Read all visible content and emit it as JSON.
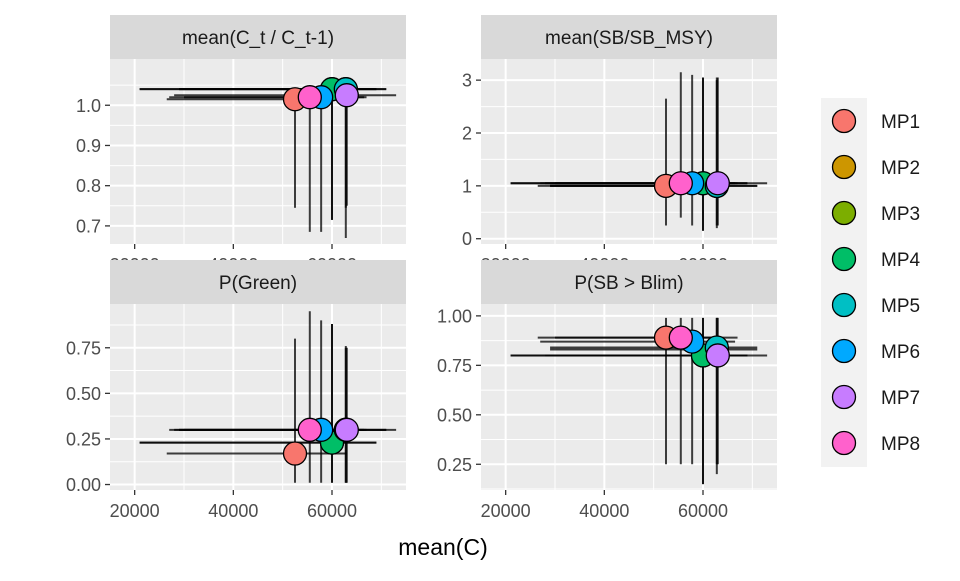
{
  "chart_data": {
    "type": "scatter",
    "xlabel": "mean(C)",
    "x_ticks": [
      20000,
      40000,
      60000
    ],
    "x_tick_labels": [
      "20000",
      "40000",
      "60000"
    ],
    "xlim": [
      15000,
      75000
    ],
    "legend": {
      "position": "right"
    },
    "series": [
      {
        "name": "MP1",
        "color": "#F8766D"
      },
      {
        "name": "MP2",
        "color": "#CD9600"
      },
      {
        "name": "MP3",
        "color": "#7CAE00"
      },
      {
        "name": "MP4",
        "color": "#00BE67"
      },
      {
        "name": "MP5",
        "color": "#00BFC4"
      },
      {
        "name": "MP6",
        "color": "#00A9FF"
      },
      {
        "name": "MP7",
        "color": "#C77CFF"
      },
      {
        "name": "MP8",
        "color": "#FF61CC"
      }
    ],
    "panels": [
      {
        "title": "mean(C_t / C_t-1)",
        "ylim": [
          0.655,
          1.115
        ],
        "y_ticks": [
          0.7,
          0.8,
          0.9,
          1.0
        ],
        "y_tick_labels": [
          "0.7",
          "0.8",
          "0.9",
          "1.0"
        ],
        "points": [
          {
            "mp": "MP1",
            "x": 52500,
            "y": 1.015,
            "x_lo": 26500,
            "x_hi": 63000,
            "y_lo": 0.745,
            "y_hi": 1.025
          },
          {
            "mp": "MP2",
            "x": 60000,
            "y": 1.04,
            "x_lo": 21000,
            "x_hi": 69000,
            "y_lo": 0.715,
            "y_hi": 1.05
          },
          {
            "mp": "MP3",
            "x": 62800,
            "y": 1.04,
            "x_lo": 29000,
            "x_hi": 71000,
            "y_lo": 0.745,
            "y_hi": 1.05
          },
          {
            "mp": "MP4",
            "x": 60000,
            "y": 1.04,
            "x_lo": 21000,
            "x_hi": 69000,
            "y_lo": 0.715,
            "y_hi": 1.05
          },
          {
            "mp": "MP5",
            "x": 62800,
            "y": 1.04,
            "x_lo": 29000,
            "x_hi": 71000,
            "y_lo": 0.67,
            "y_hi": 1.05
          },
          {
            "mp": "MP6",
            "x": 57800,
            "y": 1.02,
            "x_lo": 27000,
            "x_hi": 66500,
            "y_lo": 0.685,
            "y_hi": 1.03
          },
          {
            "mp": "MP7",
            "x": 63000,
            "y": 1.025,
            "x_lo": 28000,
            "x_hi": 73000,
            "y_lo": 0.75,
            "y_hi": 1.03
          },
          {
            "mp": "MP8",
            "x": 55500,
            "y": 1.02,
            "x_lo": 30000,
            "x_hi": 67000,
            "y_lo": 0.685,
            "y_hi": 1.03
          }
        ]
      },
      {
        "title": "mean(SB/SB_MSY)",
        "ylim": [
          -0.1,
          3.4
        ],
        "y_ticks": [
          0,
          1,
          2,
          3
        ],
        "y_tick_labels": [
          "0",
          "1",
          "2",
          "3"
        ],
        "points": [
          {
            "mp": "MP1",
            "x": 52500,
            "y": 1.0,
            "x_lo": 26500,
            "x_hi": 63000,
            "y_lo": 0.25,
            "y_hi": 2.65
          },
          {
            "mp": "MP2",
            "x": 60000,
            "y": 1.05,
            "x_lo": 21000,
            "x_hi": 69000,
            "y_lo": 0.15,
            "y_hi": 3.05
          },
          {
            "mp": "MP3",
            "x": 62800,
            "y": 1.0,
            "x_lo": 29000,
            "x_hi": 71000,
            "y_lo": 0.2,
            "y_hi": 3.05
          },
          {
            "mp": "MP4",
            "x": 60000,
            "y": 1.05,
            "x_lo": 21000,
            "x_hi": 69000,
            "y_lo": 0.15,
            "y_hi": 3.05
          },
          {
            "mp": "MP5",
            "x": 62800,
            "y": 1.0,
            "x_lo": 29000,
            "x_hi": 71000,
            "y_lo": 0.25,
            "y_hi": 3.0
          },
          {
            "mp": "MP6",
            "x": 57800,
            "y": 1.05,
            "x_lo": 27000,
            "x_hi": 66500,
            "y_lo": 0.25,
            "y_hi": 3.1
          },
          {
            "mp": "MP7",
            "x": 63000,
            "y": 1.05,
            "x_lo": 28000,
            "x_hi": 73000,
            "y_lo": 0.25,
            "y_hi": 3.05
          },
          {
            "mp": "MP8",
            "x": 55500,
            "y": 1.05,
            "x_lo": 30000,
            "x_hi": 67000,
            "y_lo": 0.4,
            "y_hi": 3.15
          }
        ]
      },
      {
        "title": "P(Green)",
        "ylim": [
          -0.03,
          0.99
        ],
        "y_ticks": [
          0,
          0.25,
          0.5,
          0.75
        ],
        "y_tick_labels": [
          "0.00",
          "0.25",
          "0.50",
          "0.75"
        ],
        "points": [
          {
            "mp": "MP1",
            "x": 52500,
            "y": 0.17,
            "x_lo": 26500,
            "x_hi": 63000,
            "y_lo": 0.01,
            "y_hi": 0.8
          },
          {
            "mp": "MP2",
            "x": 60000,
            "y": 0.23,
            "x_lo": 21000,
            "x_hi": 69000,
            "y_lo": 0.01,
            "y_hi": 0.88
          },
          {
            "mp": "MP3",
            "x": 62800,
            "y": 0.3,
            "x_lo": 29000,
            "x_hi": 71000,
            "y_lo": 0.01,
            "y_hi": 0.76
          },
          {
            "mp": "MP4",
            "x": 60000,
            "y": 0.23,
            "x_lo": 21000,
            "x_hi": 69000,
            "y_lo": 0.01,
            "y_hi": 0.88
          },
          {
            "mp": "MP5",
            "x": 62800,
            "y": 0.3,
            "x_lo": 29000,
            "x_hi": 71000,
            "y_lo": 0.01,
            "y_hi": 0.75
          },
          {
            "mp": "MP6",
            "x": 57800,
            "y": 0.3,
            "x_lo": 27000,
            "x_hi": 66500,
            "y_lo": 0.01,
            "y_hi": 0.9
          },
          {
            "mp": "MP7",
            "x": 63000,
            "y": 0.3,
            "x_lo": 28000,
            "x_hi": 73000,
            "y_lo": 0.01,
            "y_hi": 0.75
          },
          {
            "mp": "MP8",
            "x": 55500,
            "y": 0.3,
            "x_lo": 30000,
            "x_hi": 67000,
            "y_lo": 0.01,
            "y_hi": 0.95
          }
        ]
      },
      {
        "title": "P(SB > Blim)",
        "ylim": [
          0.12,
          1.06
        ],
        "y_ticks": [
          0.25,
          0.5,
          0.75,
          1.0
        ],
        "y_tick_labels": [
          "0.25",
          "0.50",
          "0.75",
          "1.00"
        ],
        "points": [
          {
            "mp": "MP1",
            "x": 52500,
            "y": 0.89,
            "x_lo": 26500,
            "x_hi": 63000,
            "y_lo": 0.25,
            "y_hi": 0.99
          },
          {
            "mp": "MP2",
            "x": 60000,
            "y": 0.8,
            "x_lo": 21000,
            "x_hi": 69000,
            "y_lo": 0.15,
            "y_hi": 0.99
          },
          {
            "mp": "MP3",
            "x": 62800,
            "y": 0.83,
            "x_lo": 29000,
            "x_hi": 71000,
            "y_lo": 0.2,
            "y_hi": 0.99
          },
          {
            "mp": "MP4",
            "x": 60000,
            "y": 0.8,
            "x_lo": 21000,
            "x_hi": 69000,
            "y_lo": 0.15,
            "y_hi": 0.99
          },
          {
            "mp": "MP5",
            "x": 62800,
            "y": 0.84,
            "x_lo": 29000,
            "x_hi": 71000,
            "y_lo": 0.25,
            "y_hi": 0.99
          },
          {
            "mp": "MP6",
            "x": 57800,
            "y": 0.87,
            "x_lo": 27000,
            "x_hi": 66500,
            "y_lo": 0.25,
            "y_hi": 0.99
          },
          {
            "mp": "MP7",
            "x": 63000,
            "y": 0.8,
            "x_lo": 28000,
            "x_hi": 73000,
            "y_lo": 0.25,
            "y_hi": 0.99
          },
          {
            "mp": "MP8",
            "x": 55500,
            "y": 0.89,
            "x_lo": 30000,
            "x_hi": 67000,
            "y_lo": 0.25,
            "y_hi": 0.99
          }
        ]
      }
    ]
  }
}
